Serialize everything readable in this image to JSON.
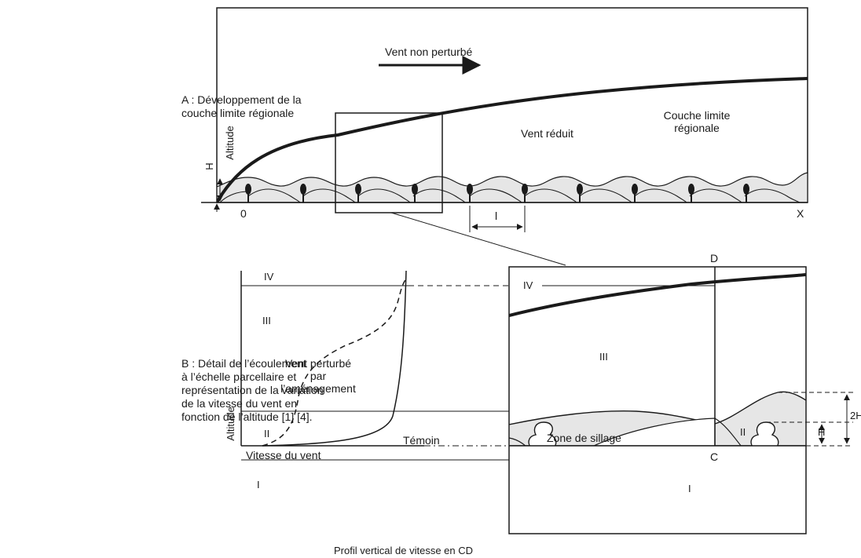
{
  "caption_a": {
    "line1": "A : Développement de la",
    "line2": "couche limite régionale"
  },
  "caption_b": {
    "line1": "B : Détail de l’écoulement",
    "line2": "à l’échelle parcellaire et",
    "line3": "représentation de la variation",
    "line4": "de la vitesse du vent en",
    "line5": "fonction de l’altitude [1] [4]."
  },
  "top_panel": {
    "undisturbed_wind": "Vent non perturbé",
    "reduced_wind": "Vent réduit",
    "regional_layer_line1": "Couche limite",
    "regional_layer_line2": "régionale",
    "altitude_label": "Altitude",
    "h_label": "H",
    "origin_label": "0",
    "x_label": "X",
    "spacing_label": "l"
  },
  "profile_panel": {
    "zone_iv": "IV",
    "zone_iii": "III",
    "zone_ii": "II",
    "zone_i": "I",
    "disturbed_line1": "Vent perturbé",
    "disturbed_line2": "par",
    "disturbed_line3": "l’aménagement",
    "control_label": "Témoin",
    "altitude_label": "Altitude",
    "speed_label": "Vitesse du vent"
  },
  "detail_panel": {
    "zone_iv": "IV",
    "zone_iii": "III",
    "zone_ii": "II",
    "zone_i": "I",
    "wake_zone": "Zone de sillage",
    "point_d": "D",
    "point_c": "C",
    "label_2h": "2H",
    "label_h": "H",
    "profile_caption": "Profil vertical de vitesse en CD"
  }
}
